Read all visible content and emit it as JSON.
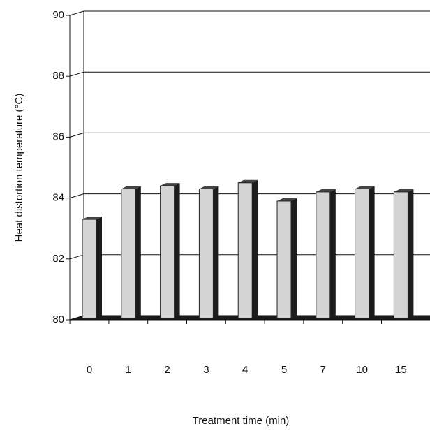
{
  "chart_data": {
    "type": "bar",
    "y_label": "Heat distortion temperature (°C)",
    "x_label": "Treatment time (min)",
    "categories": [
      "0",
      "1",
      "2",
      "3",
      "4",
      "5",
      "7",
      "10",
      "15"
    ],
    "values": [
      83.3,
      84.3,
      84.4,
      84.3,
      84.5,
      83.9,
      84.2,
      84.3,
      84.2
    ],
    "color": "#d4d4d4",
    "ylim": [
      80,
      90
    ],
    "yticks": [
      80,
      82,
      84,
      86,
      88,
      90
    ],
    "grid": true
  }
}
